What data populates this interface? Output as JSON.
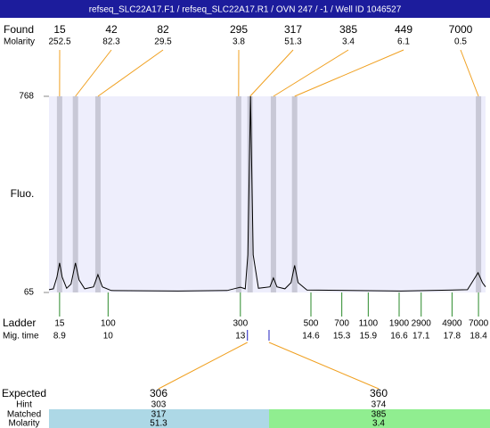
{
  "header": {
    "title": "refseq_SLC22A17.F1 / refseq_SLC22A17.R1 / OVN 247 / -1 / Well ID 1046527"
  },
  "chart_data": {
    "type": "electropherogram",
    "found_label": "Found",
    "molarity_label": "Molarity",
    "found": [
      15,
      42,
      82,
      295,
      317,
      385,
      449,
      7000
    ],
    "found_molarity": [
      252.5,
      82.3,
      29.5,
      3.8,
      51.3,
      3.4,
      6.1,
      0.5
    ],
    "found_times": [
      8.9,
      9.26,
      9.77,
      12.96,
      13.22,
      13.75,
      14.23,
      18.4
    ],
    "y_label": "Fluo.",
    "ylim": [
      65,
      768
    ],
    "yticks": [
      65,
      768
    ],
    "xlim": [
      8.66,
      18.56
    ],
    "trace": {
      "x": [
        8.66,
        8.76,
        8.84,
        8.9,
        8.96,
        9.06,
        9.16,
        9.26,
        9.34,
        9.47,
        9.67,
        9.77,
        9.87,
        10.07,
        11.59,
        12.7,
        12.9,
        13.0,
        13.11,
        13.17,
        13.23,
        13.29,
        13.41,
        13.67,
        13.75,
        13.83,
        14.01,
        14.15,
        14.23,
        14.31,
        14.51,
        16.64,
        18.15,
        18.29,
        18.39,
        18.49,
        18.56
      ],
      "values": [
        75,
        78,
        120,
        171,
        120,
        80,
        95,
        171,
        110,
        78,
        85,
        129,
        85,
        72,
        70,
        72,
        80,
        84,
        78,
        200,
        768,
        200,
        80,
        85,
        117,
        85,
        78,
        100,
        162,
        100,
        74,
        70,
        75,
        110,
        136,
        100,
        85
      ]
    },
    "ladder": {
      "label": "Ladder",
      "time_label": "Mig. time",
      "sizes": [
        15,
        100,
        300,
        500,
        700,
        1100,
        1900,
        2900,
        4900,
        7000
      ],
      "mig_times": [
        8.9,
        10,
        13,
        14.6,
        15.3,
        15.9,
        16.6,
        17.1,
        17.8,
        18.4
      ]
    },
    "expected": {
      "label": "Expected",
      "hint_label": "Hint",
      "matched_label": "Matched",
      "molarity_label": "Molarity",
      "colors": [
        "#add8e6",
        "#90ee90"
      ],
      "items": [
        {
          "expected": 306,
          "hint": 303,
          "matched": 317,
          "molarity": 51.3,
          "time": 13.16
        },
        {
          "expected": 360,
          "hint": 374,
          "matched": 385,
          "molarity": 3.4,
          "time": 13.65
        }
      ]
    }
  }
}
